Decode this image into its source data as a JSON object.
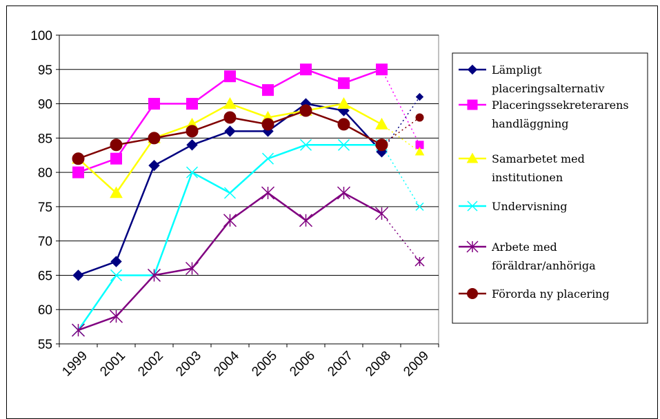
{
  "chart_data": {
    "type": "line",
    "title": "",
    "xlabel": "",
    "ylabel": "",
    "categories": [
      "1999",
      "2001",
      "2002",
      "2003",
      "2004",
      "2005",
      "2006",
      "2007",
      "2008",
      "2009"
    ],
    "ylim": [
      55,
      100
    ],
    "yticks": [
      55,
      60,
      65,
      70,
      75,
      80,
      85,
      90,
      95,
      100
    ],
    "grid": "horizontal",
    "legend_position": "right",
    "dotted_last_segment": true,
    "series": [
      {
        "name": "Lämpligt placeringsalternativ",
        "legend_lines": [
          "Lämpligt",
          "placeringsalternativ"
        ],
        "color": "#000080",
        "marker": "diamond",
        "values": [
          65,
          67,
          81,
          84,
          86,
          86,
          90,
          89,
          83,
          91
        ]
      },
      {
        "name": "Placeringssekreterarens handläggning",
        "legend_lines": [
          "Placeringssekreterarens",
          "handläggning"
        ],
        "color": "#FF00FF",
        "marker": "square",
        "values": [
          80,
          82,
          90,
          90,
          94,
          92,
          95,
          93,
          95,
          84
        ]
      },
      {
        "name": "Samarbetet med institutionen",
        "legend_lines": [
          "Samarbetet med",
          "institutionen"
        ],
        "color": "#FFFF00",
        "marker": "triangle",
        "values": [
          82,
          77,
          85,
          87,
          90,
          88,
          89,
          90,
          87,
          83
        ]
      },
      {
        "name": "Undervisning",
        "legend_lines": [
          "Undervisning"
        ],
        "color": "#00FFFF",
        "marker": "x",
        "values": [
          57,
          65,
          65,
          80,
          77,
          82,
          84,
          84,
          84,
          75
        ]
      },
      {
        "name": "Arbete med föräldrar/anhöriga",
        "legend_lines": [
          "Arbete med",
          "föräldrar/anhöriga"
        ],
        "color": "#800080",
        "marker": "asterisk",
        "values": [
          57,
          59,
          65,
          66,
          73,
          77,
          73,
          77,
          74,
          67
        ]
      },
      {
        "name": "Förorda ny placering",
        "legend_lines": [
          "Förorda ny placering"
        ],
        "color": "#800000",
        "marker": "circle",
        "values": [
          82,
          84,
          85,
          86,
          88,
          87,
          89,
          87,
          84,
          88
        ]
      }
    ]
  }
}
